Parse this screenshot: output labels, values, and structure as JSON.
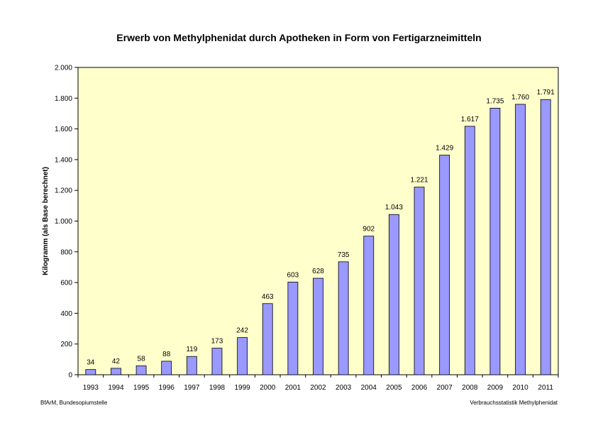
{
  "chart_data": {
    "type": "bar",
    "title": "Erwerb von Methylphenidat durch Apotheken in Form von Fertigarzneimitteln",
    "xlabel": "",
    "ylabel": "Kilogramm (als Base berechnet)",
    "ylim": [
      0,
      2000
    ],
    "yticks": [
      0,
      200,
      400,
      600,
      800,
      1000,
      1200,
      1400,
      1600,
      1800,
      2000
    ],
    "ytick_labels": [
      "0",
      "200",
      "400",
      "600",
      "800",
      "1.000",
      "1.200",
      "1.400",
      "1.600",
      "1.800",
      "2.000"
    ],
    "categories": [
      "1993",
      "1994",
      "1995",
      "1996",
      "1997",
      "1998",
      "1999",
      "2000",
      "2001",
      "2002",
      "2003",
      "2004",
      "2005",
      "2006",
      "2007",
      "2008",
      "2009",
      "2010",
      "2011"
    ],
    "values": [
      34,
      42,
      58,
      88,
      119,
      173,
      242,
      463,
      603,
      628,
      735,
      902,
      1043,
      1221,
      1429,
      1617,
      1735,
      1760,
      1791
    ],
    "value_labels": [
      "34",
      "42",
      "58",
      "88",
      "119",
      "173",
      "242",
      "463",
      "603",
      "628",
      "735",
      "902",
      "1.043",
      "1.221",
      "1.429",
      "1.617",
      "1.735",
      "1.760",
      "1.791"
    ],
    "grid": false,
    "legend": "none"
  },
  "colors": {
    "plot_background": "#FFFFCC",
    "bar_fill": "#9999FF",
    "bar_stroke": "#000000"
  },
  "footer": {
    "left": "BfArM, Bundesopiumstelle",
    "right": "Verbrauchsstatistik Methylphenidat"
  }
}
